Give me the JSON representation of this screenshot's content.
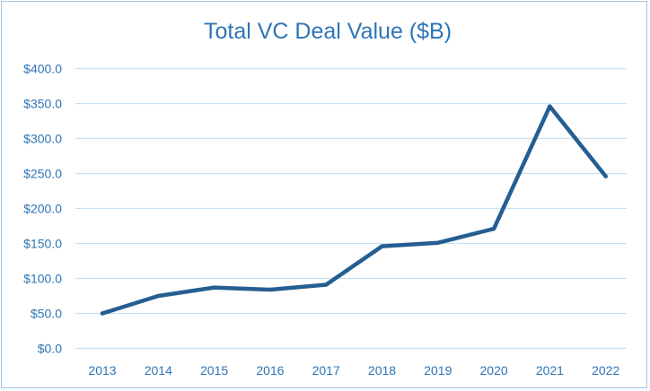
{
  "chart_data": {
    "type": "line",
    "title": "Total VC Deal Value ($B)",
    "xlabel": "",
    "ylabel": "",
    "categories": [
      "2013",
      "2014",
      "2015",
      "2016",
      "2017",
      "2018",
      "2019",
      "2020",
      "2021",
      "2022"
    ],
    "series": [
      {
        "values": [
          50.0,
          75.0,
          87.0,
          84.0,
          91.0,
          146.0,
          151.0,
          171.0,
          346.0,
          246.0
        ]
      }
    ],
    "ylim": [
      0,
      400
    ],
    "ytick_values": [
      0,
      50,
      100,
      150,
      200,
      250,
      300,
      350,
      400
    ],
    "ytick_labels": [
      "$0.0",
      "$50.0",
      "$100.0",
      "$150.0",
      "$200.0",
      "$250.0",
      "$300.0",
      "$350.0",
      "$400.0"
    ],
    "grid": true,
    "legend": "none",
    "colors": {
      "line": "#255e91",
      "text": "#2e75b6",
      "grid": "#c9dff2",
      "border": "#9fc3e6"
    }
  }
}
